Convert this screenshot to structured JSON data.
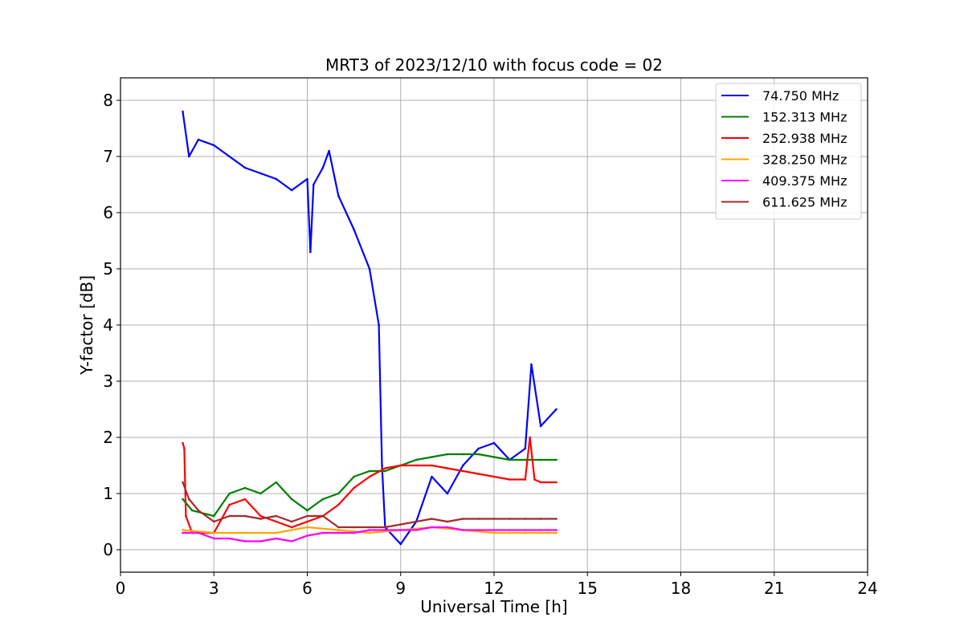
{
  "chart_data": {
    "type": "line",
    "title": "MRT3 of 2023/12/10 with focus code = 02",
    "xlabel": "Universal Time [h]",
    "ylabel": "Y-factor [dB]",
    "xlim": [
      0,
      24
    ],
    "ylim": [
      -0.4,
      8.4
    ],
    "xticks": [
      0,
      3,
      6,
      9,
      12,
      15,
      18,
      21,
      24
    ],
    "yticks": [
      0,
      1,
      2,
      3,
      4,
      5,
      6,
      7,
      8
    ],
    "grid": true,
    "legend_position": "top-right",
    "series": [
      {
        "name": "74.750 MHz",
        "legend_label": " 74.750 MHz",
        "color": "#0000ff",
        "x": [
          2.0,
          2.2,
          2.5,
          3.0,
          3.5,
          4.0,
          4.5,
          5.0,
          5.5,
          6.0,
          6.1,
          6.2,
          6.5,
          6.7,
          7.0,
          7.5,
          8.0,
          8.3,
          8.4,
          8.5,
          9.0,
          9.5,
          10.0,
          10.5,
          11.0,
          11.5,
          12.0,
          12.5,
          13.0,
          13.2,
          13.5,
          14.0
        ],
        "y": [
          7.8,
          7.0,
          7.3,
          7.2,
          7.0,
          6.8,
          6.7,
          6.6,
          6.4,
          6.6,
          5.3,
          6.5,
          6.8,
          7.1,
          6.3,
          5.7,
          5.0,
          4.0,
          1.5,
          0.4,
          0.1,
          0.5,
          1.3,
          1.0,
          1.5,
          1.8,
          1.9,
          1.6,
          1.8,
          3.3,
          2.2,
          2.5
        ]
      },
      {
        "name": "152.313 MHz",
        "legend_label": "152.313 MHz",
        "color": "#008000",
        "x": [
          2.0,
          2.3,
          3.0,
          3.5,
          4.0,
          4.5,
          5.0,
          5.5,
          6.0,
          6.5,
          7.0,
          7.5,
          8.0,
          8.5,
          9.0,
          9.5,
          10.0,
          10.5,
          11.0,
          11.5,
          12.0,
          12.5,
          13.0,
          13.5,
          14.0
        ],
        "y": [
          0.9,
          0.7,
          0.6,
          1.0,
          1.1,
          1.0,
          1.2,
          0.9,
          0.7,
          0.9,
          1.0,
          1.3,
          1.4,
          1.4,
          1.5,
          1.6,
          1.65,
          1.7,
          1.7,
          1.7,
          1.65,
          1.6,
          1.6,
          1.6,
          1.6
        ]
      },
      {
        "name": "252.938 MHz",
        "legend_label": "252.938 MHz",
        "color": "#ff0000",
        "x": [
          2.0,
          2.05,
          2.1,
          2.3,
          3.0,
          3.5,
          4.0,
          4.5,
          5.0,
          5.5,
          6.0,
          6.5,
          7.0,
          7.5,
          8.0,
          8.5,
          9.0,
          9.5,
          10.0,
          10.5,
          11.0,
          11.5,
          12.0,
          12.5,
          13.0,
          13.15,
          13.3,
          13.5,
          14.0
        ],
        "y": [
          1.9,
          1.8,
          0.6,
          0.3,
          0.3,
          0.8,
          0.9,
          0.6,
          0.5,
          0.4,
          0.5,
          0.6,
          0.8,
          1.1,
          1.3,
          1.45,
          1.5,
          1.5,
          1.5,
          1.45,
          1.4,
          1.35,
          1.3,
          1.25,
          1.25,
          2.0,
          1.25,
          1.2,
          1.2
        ]
      },
      {
        "name": "328.250 MHz",
        "legend_label": "328.250 MHz",
        "color": "#ffa500",
        "x": [
          2.0,
          3.0,
          4.0,
          5.0,
          6.0,
          7.0,
          8.0,
          9.0,
          10.0,
          11.0,
          12.0,
          13.0,
          14.0
        ],
        "y": [
          0.35,
          0.3,
          0.3,
          0.3,
          0.4,
          0.35,
          0.3,
          0.35,
          0.4,
          0.35,
          0.3,
          0.3,
          0.3
        ]
      },
      {
        "name": "409.375 MHz",
        "legend_label": "409.375 MHz",
        "color": "#ff00ff",
        "x": [
          2.0,
          2.5,
          3.0,
          3.5,
          4.0,
          4.5,
          5.0,
          5.5,
          6.0,
          6.5,
          7.0,
          7.5,
          8.0,
          8.5,
          9.0,
          9.5,
          10.0,
          10.5,
          11.0,
          11.5,
          12.0,
          12.5,
          13.0,
          13.5,
          14.0
        ],
        "y": [
          0.3,
          0.3,
          0.2,
          0.2,
          0.15,
          0.15,
          0.2,
          0.15,
          0.25,
          0.3,
          0.3,
          0.3,
          0.35,
          0.35,
          0.35,
          0.35,
          0.4,
          0.4,
          0.35,
          0.35,
          0.35,
          0.35,
          0.35,
          0.35,
          0.35
        ]
      },
      {
        "name": "611.625 MHz",
        "legend_label": "611.625 MHz",
        "color": "#a52a2a",
        "x": [
          2.0,
          2.2,
          2.5,
          3.0,
          3.5,
          4.0,
          4.5,
          5.0,
          5.5,
          6.0,
          6.5,
          7.0,
          7.5,
          8.0,
          8.5,
          9.0,
          9.5,
          10.0,
          10.5,
          11.0,
          11.5,
          12.0,
          12.5,
          13.0,
          13.5,
          14.0
        ],
        "y": [
          1.2,
          0.9,
          0.7,
          0.5,
          0.6,
          0.6,
          0.55,
          0.6,
          0.5,
          0.6,
          0.6,
          0.4,
          0.4,
          0.4,
          0.4,
          0.45,
          0.5,
          0.55,
          0.5,
          0.55,
          0.55,
          0.55,
          0.55,
          0.55,
          0.55,
          0.55
        ]
      }
    ]
  }
}
